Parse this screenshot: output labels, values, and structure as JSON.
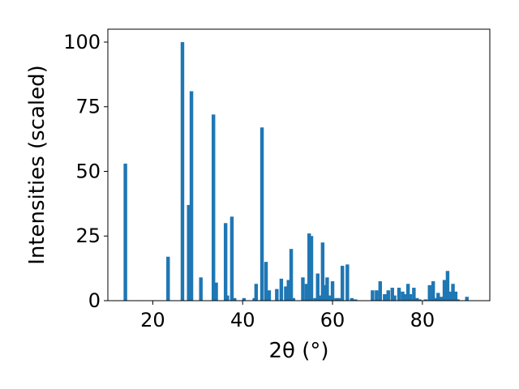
{
  "chart_data": {
    "type": "bar",
    "title": "",
    "xlabel": "2θ (°)",
    "ylabel": "Intensities (scaled)",
    "xlim": [
      10,
      95
    ],
    "ylim": [
      0,
      105
    ],
    "xticks": [
      20,
      40,
      60,
      80
    ],
    "yticks": [
      0,
      25,
      50,
      75,
      100
    ],
    "grid": false,
    "bar_color": "#1f77b4",
    "bar_width": 0.8,
    "x": [
      13.9,
      23.4,
      26.6,
      28.0,
      28.6,
      30.7,
      33.5,
      34.1,
      36.2,
      36.6,
      37.6,
      38.2,
      40.3,
      42.6,
      43.0,
      44.3,
      45.2,
      45.9,
      47.6,
      48.6,
      49.6,
      50.2,
      50.8,
      51.3,
      53.4,
      54.2,
      54.8,
      55.3,
      56.1,
      56.7,
      57.2,
      57.8,
      58.3,
      58.8,
      59.4,
      60.0,
      60.8,
      61.4,
      62.2,
      63.3,
      64.3,
      65.1,
      68.9,
      69.8,
      70.6,
      71.6,
      72.4,
      73.3,
      73.8,
      74.8,
      75.6,
      76.2,
      76.8,
      77.3,
      78.1,
      78.8,
      79.4,
      80.7,
      81.6,
      82.4,
      82.9,
      83.5,
      84.2,
      84.9,
      85.6,
      86.2,
      86.8,
      87.4,
      87.9,
      89.9
    ],
    "values": [
      53,
      17,
      100,
      37,
      81,
      9,
      72,
      7,
      30,
      2,
      32.5,
      1,
      1,
      1,
      6.5,
      67,
      15,
      4,
      4.5,
      8.5,
      5.5,
      8,
      20,
      1,
      9,
      6.5,
      26,
      25,
      1,
      10.5,
      2,
      22.5,
      6,
      9,
      2,
      7.5,
      1,
      1,
      13.5,
      14,
      1,
      0.5,
      4,
      4,
      7.5,
      2.5,
      4,
      5,
      2,
      5,
      3.5,
      2.5,
      6.5,
      2.5,
      5,
      1,
      0.5,
      0.5,
      6,
      7.5,
      1,
      3,
      1.5,
      8,
      11.5,
      3.5,
      6.5,
      3.5,
      0.5,
      1.5
    ]
  }
}
